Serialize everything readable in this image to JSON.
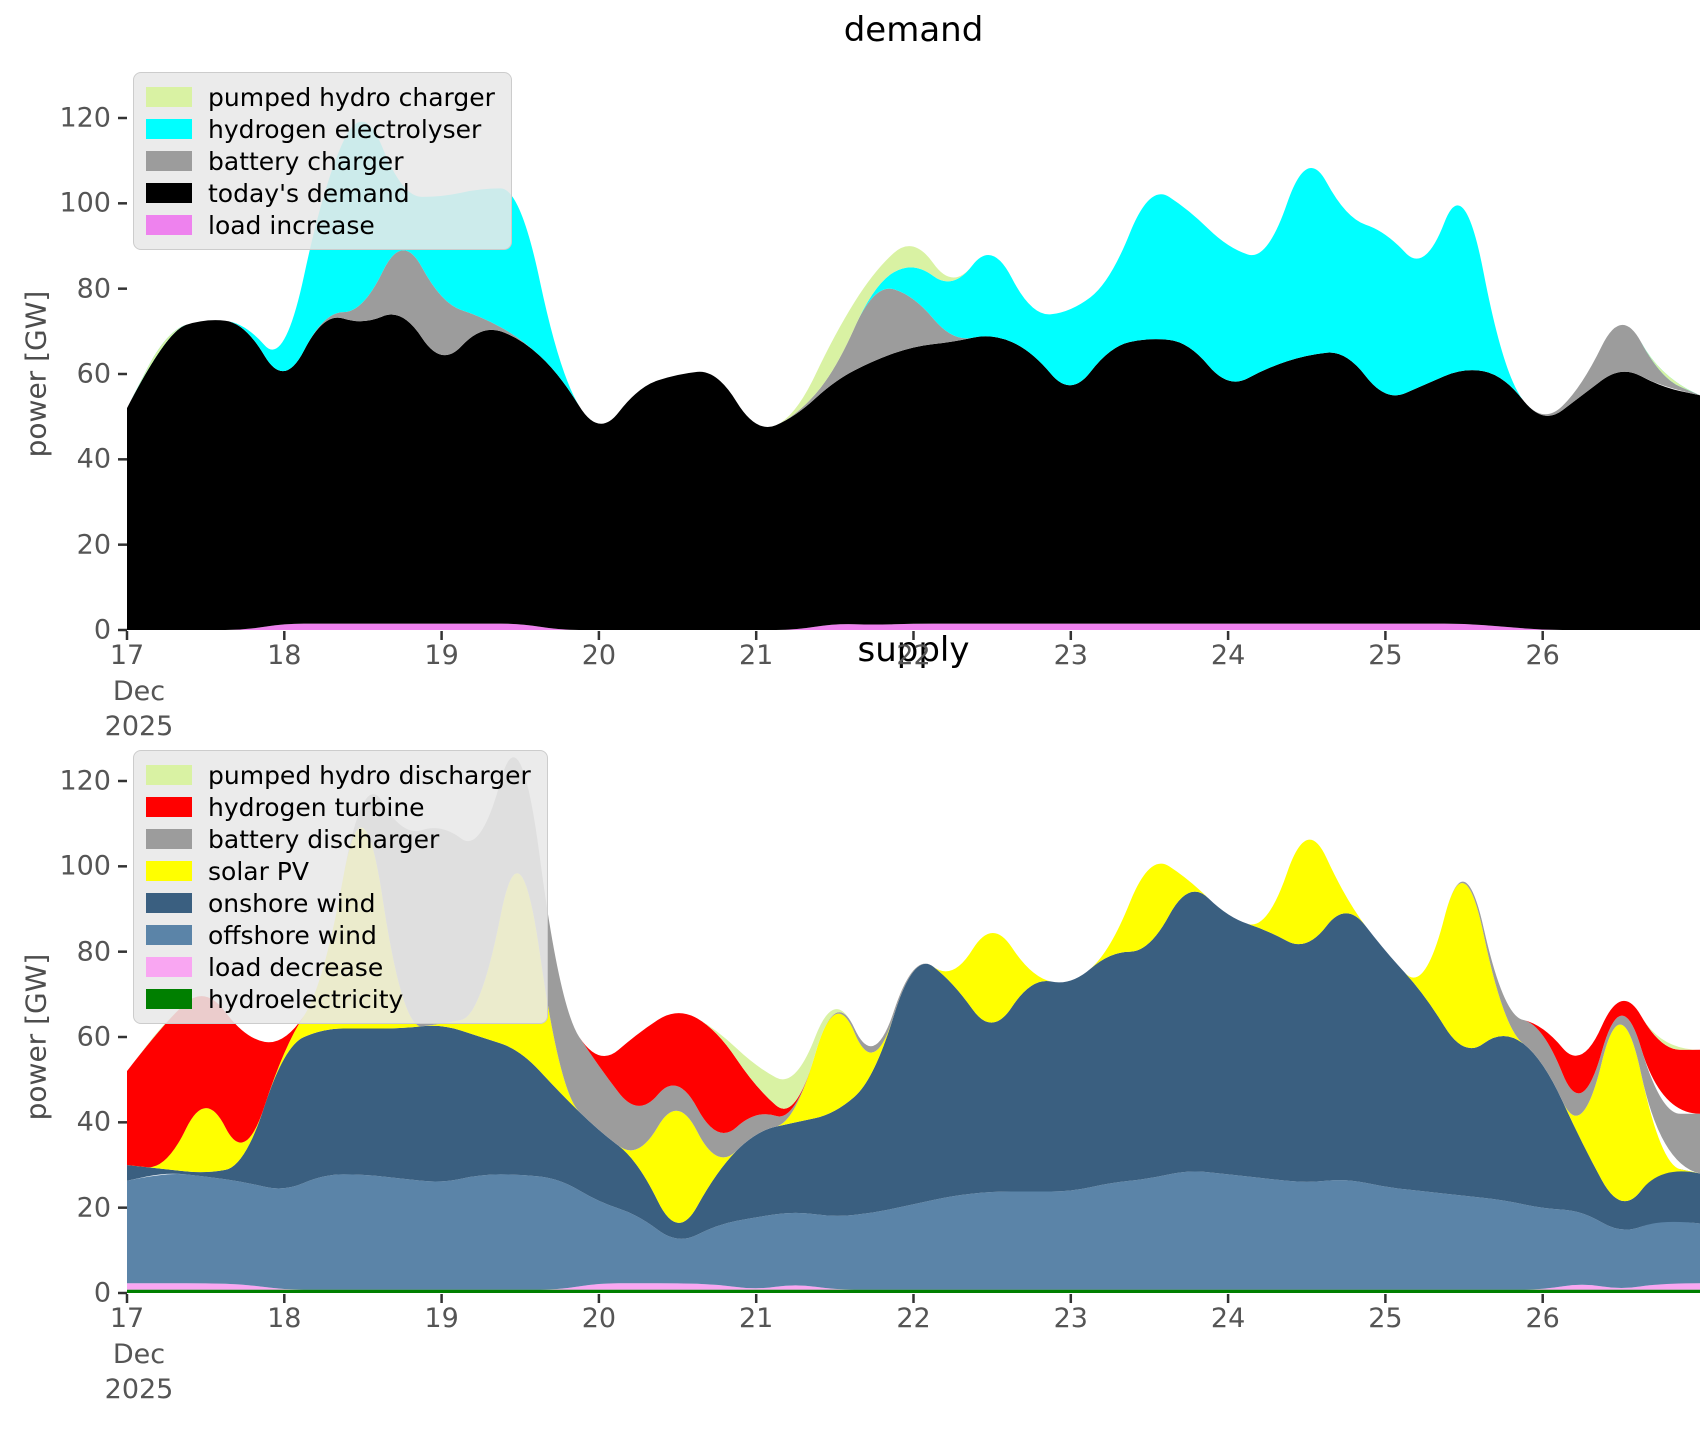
{
  "figure": {
    "background": "#ffffff"
  },
  "chart_data": [
    {
      "id": "demand",
      "type": "area",
      "title": "demand",
      "ylabel": "power [GW]",
      "xlabel_month": "Dec",
      "xlabel_year": "2025",
      "x_ticks": [
        17,
        18,
        19,
        20,
        21,
        22,
        23,
        24,
        25,
        26
      ],
      "y_ticks": [
        0,
        20,
        40,
        60,
        80,
        100,
        120
      ],
      "ylim": [
        0,
        120
      ],
      "grid": false,
      "legend_position": "upper left",
      "x": [
        17,
        17.25,
        17.5,
        17.75,
        18,
        18.25,
        18.5,
        18.75,
        19,
        19.25,
        19.5,
        19.75,
        20,
        20.25,
        20.5,
        20.75,
        21,
        21.25,
        21.5,
        21.75,
        22,
        22.25,
        22.5,
        22.75,
        23,
        23.25,
        23.5,
        23.75,
        24,
        24.25,
        24.5,
        24.75,
        25,
        25.25,
        25.5,
        25.75,
        26,
        26.25,
        26.5,
        26.75,
        27
      ],
      "series": [
        {
          "name": "load increase",
          "color": "#ee82ee",
          "values": [
            0,
            0,
            0,
            0,
            1.5,
            1.5,
            1.5,
            1.5,
            1.5,
            1.5,
            1.5,
            0,
            0,
            0,
            0,
            0,
            0,
            0,
            1.5,
            1.2,
            1.5,
            1.5,
            1.5,
            1.5,
            1.5,
            1.5,
            1.5,
            1.5,
            1.5,
            1.5,
            1.5,
            1.5,
            1.5,
            1.5,
            1.5,
            0.8,
            0,
            0,
            0,
            0,
            0
          ]
        },
        {
          "name": "today's demand",
          "color": "#000000",
          "values": [
            52,
            70,
            73,
            72,
            55,
            73,
            70,
            74,
            60,
            70,
            67,
            60,
            45,
            57,
            60,
            61,
            46,
            50,
            57,
            62,
            65,
            66,
            68,
            64,
            53,
            65,
            67,
            66,
            55,
            60,
            63,
            64,
            52,
            56,
            60,
            59,
            48,
            55,
            62,
            57,
            55
          ]
        },
        {
          "name": "battery charger",
          "color": "#9c9c9c",
          "values": [
            0,
            0,
            0,
            0,
            0,
            0,
            3,
            18,
            15,
            2,
            0,
            0,
            0,
            0,
            0,
            0,
            0,
            0,
            2,
            18,
            12,
            0,
            0,
            0,
            0,
            0,
            0,
            0,
            0,
            0,
            0,
            0,
            0,
            0,
            0,
            0,
            0,
            2,
            14,
            2,
            0
          ]
        },
        {
          "name": "hydrogen electrolyser",
          "color": "#00ffff",
          "values": [
            0,
            0,
            0,
            0,
            5,
            30,
            50,
            8,
            25,
            30,
            35,
            0,
            0,
            0,
            0,
            0,
            0,
            0,
            0,
            0,
            8,
            12,
            22,
            8,
            20,
            15,
            36,
            31,
            33,
            25,
            49,
            31,
            40,
            26,
            46,
            0,
            0,
            0,
            0,
            0,
            0
          ]
        },
        {
          "name": "pumped hydro charger",
          "color": "#d9f2a3",
          "values": [
            0,
            0,
            0,
            0,
            0,
            0,
            0,
            0,
            0,
            0,
            0,
            0,
            0,
            0,
            0,
            0,
            0,
            0,
            9,
            3,
            6,
            0,
            0,
            0,
            0,
            0,
            0,
            0,
            0,
            0,
            0,
            0,
            0,
            0,
            0,
            0,
            0,
            0,
            0,
            0,
            0
          ]
        }
      ]
    },
    {
      "id": "supply",
      "type": "area",
      "title": "supply",
      "ylabel": "power [GW]",
      "xlabel_month": "Dec",
      "xlabel_year": "2025",
      "x_ticks": [
        17,
        18,
        19,
        20,
        21,
        22,
        23,
        24,
        25,
        26
      ],
      "y_ticks": [
        0,
        20,
        40,
        60,
        80,
        100,
        120
      ],
      "ylim": [
        0,
        120
      ],
      "grid": false,
      "legend_position": "upper left",
      "x": [
        17,
        17.25,
        17.5,
        17.75,
        18,
        18.25,
        18.5,
        18.75,
        19,
        19.25,
        19.5,
        19.75,
        20,
        20.25,
        20.5,
        20.75,
        21,
        21.25,
        21.5,
        21.75,
        22,
        22.25,
        22.5,
        22.75,
        23,
        23.25,
        23.5,
        23.75,
        24,
        24.25,
        24.5,
        24.75,
        25,
        25.25,
        25.5,
        25.75,
        26,
        26.25,
        26.5,
        26.75,
        27
      ],
      "series": [
        {
          "name": "hydroelectricity",
          "color": "#007f00",
          "values": [
            0.8,
            0.8,
            0.8,
            0.8,
            0.8,
            0.8,
            0.8,
            0.8,
            0.8,
            0.8,
            0.8,
            0.8,
            0.8,
            0.8,
            0.8,
            0.8,
            0.8,
            0.8,
            0.8,
            0.8,
            0.8,
            0.8,
            0.8,
            0.8,
            0.8,
            0.8,
            0.8,
            0.8,
            0.8,
            0.8,
            0.8,
            0.8,
            0.8,
            0.8,
            0.8,
            0.8,
            0.8,
            0.8,
            0.8,
            0.8,
            0.8
          ]
        },
        {
          "name": "load decrease",
          "color": "#f9a6f2",
          "values": [
            1.5,
            1.5,
            1.5,
            1.2,
            0,
            0,
            0,
            0,
            0,
            0,
            0,
            0,
            1.5,
            1.5,
            1.5,
            1.2,
            0,
            1.3,
            0,
            0,
            0,
            0,
            0,
            0,
            0,
            0,
            0,
            0,
            0,
            0,
            0,
            0,
            0,
            0,
            0,
            0,
            0,
            1.5,
            0,
            1.5,
            1.5
          ]
        },
        {
          "name": "offshore wind",
          "color": "#5b84a8",
          "values": [
            24,
            26,
            25,
            24,
            23,
            27,
            27,
            26,
            25,
            27,
            27,
            26,
            19,
            16,
            9,
            14,
            17,
            17,
            17,
            18,
            20,
            22,
            23,
            23,
            23,
            25,
            26,
            28,
            27,
            26,
            25,
            26,
            24,
            23,
            22,
            21,
            19,
            17,
            13,
            15,
            14
          ]
        },
        {
          "name": "onshore wind",
          "color": "#3a5f80",
          "values": [
            3.7,
            0.7,
            0.7,
            3.7,
            34.2,
            34.2,
            34.2,
            35.2,
            37.2,
            32.2,
            29.2,
            20.2,
            16.7,
            12.7,
            0.7,
            12.7,
            20.2,
            20.9,
            24.2,
            31.2,
            59.2,
            50.2,
            36.2,
            50.2,
            48.2,
            54.2,
            53.2,
            68.2,
            60.2,
            58.2,
            54.2,
            65.2,
            55.2,
            46.2,
            32.2,
            40.2,
            35.2,
            15.7,
            4.2,
            12.7,
            11.7
          ]
        },
        {
          "name": "solar PV",
          "color": "#ffff00",
          "values": [
            0,
            0,
            20,
            0,
            0,
            10,
            61,
            0,
            0,
            5,
            55,
            0,
            0,
            0,
            35,
            0,
            0,
            0,
            30,
            0,
            0,
            0,
            28,
            0,
            0,
            0,
            23,
            0,
            0,
            0,
            32,
            0,
            0,
            0,
            51,
            0,
            0,
            0,
            55,
            0,
            0
          ]
        },
        {
          "name": "battery discharger",
          "color": "#9c9c9c",
          "values": [
            0,
            0,
            0,
            0,
            0,
            0,
            0,
            45,
            47,
            38,
            25,
            20,
            15,
            10,
            5,
            6,
            5,
            0,
            0,
            2,
            0,
            0,
            0,
            0,
            0,
            0,
            0,
            0,
            0,
            0,
            0,
            0,
            0,
            0,
            0,
            3,
            8,
            5,
            0,
            12,
            14
          ]
        },
        {
          "name": "hydrogen turbine",
          "color": "#ff0000",
          "values": [
            22,
            35,
            24,
            30,
            0,
            0,
            0,
            0,
            0,
            0,
            0,
            0,
            0,
            20,
            15,
            27,
            5,
            0,
            0,
            0,
            0,
            0,
            0,
            0,
            0,
            0,
            0,
            0,
            0,
            0,
            0,
            0,
            0,
            0,
            0,
            0,
            0,
            12,
            0,
            15,
            15
          ]
        },
        {
          "name": "pumped hydro discharger",
          "color": "#d9f2a3",
          "values": [
            0,
            0,
            0,
            0,
            0,
            0,
            0,
            0,
            0,
            0,
            0,
            0,
            0,
            0,
            0,
            0,
            5,
            8,
            0,
            0,
            0,
            0,
            0,
            0,
            0,
            0,
            0,
            0,
            0,
            0,
            0,
            0,
            0,
            0,
            0,
            0,
            0,
            0,
            0,
            0,
            0
          ]
        }
      ]
    }
  ]
}
